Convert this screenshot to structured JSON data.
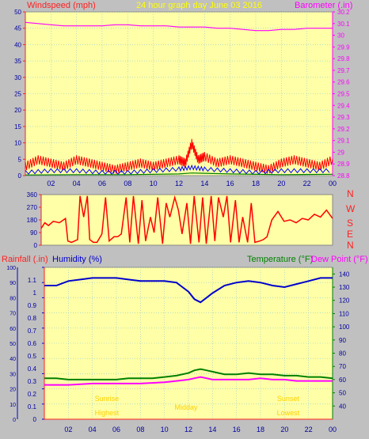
{
  "header": {
    "left_label": "Windspeed (mph)",
    "title": "24 hour graph day   June 03 2016",
    "right_label": "Barometer (.in)"
  },
  "compass": [
    "N",
    "W",
    "S",
    "E",
    "N"
  ],
  "bottom_labels": {
    "rainfall": "Rainfall (.in)",
    "humidity": "Humidity (%)",
    "temperature": "Temperature (°F)",
    "dewpoint": "Dew Point (°F)"
  },
  "colors": {
    "background": "#c0c0c0",
    "plot_bg": "#ffffa8",
    "grid": "#8ec9c9",
    "axis_red": "#ff2020",
    "barometer": "#ff00ff",
    "wind_speed": "#ff0000",
    "wind_avg": "#0000ff",
    "wind_low": "#008000",
    "wind_dir": "#ff0000",
    "humidity": "#0000cc",
    "temperature": "#008000",
    "dewpoint": "#ff00ff",
    "header_text": "#ffff00"
  },
  "chart_data": [
    {
      "type": "line",
      "name": "windspeed-barometer",
      "title": "24 hour graph day   June 03 2016",
      "ylabel_left": "Windspeed (mph)",
      "ylabel_right": "Barometer (.in)",
      "x_ticks": [
        "02",
        "04",
        "06",
        "08",
        "10",
        "12",
        "14",
        "16",
        "18",
        "20",
        "22",
        "00"
      ],
      "xlim": [
        0,
        24
      ],
      "ylim_left": [
        0,
        50
      ],
      "ylim_right": [
        28.8,
        30.2
      ],
      "y_ticks_left": [
        0,
        5,
        10,
        15,
        20,
        25,
        30,
        35,
        40,
        45,
        50
      ],
      "y_ticks_right": [
        "28.8",
        "28.9",
        "29",
        "29.1",
        "29.2",
        "29.3",
        "29.4",
        "29.5",
        "29.6",
        "29.7",
        "29.8",
        "29.9",
        "30",
        "30.1",
        "30.2"
      ],
      "grid": true,
      "barometer": {
        "x": [
          0,
          1,
          2,
          3,
          4,
          5,
          6,
          7,
          8,
          9,
          10,
          11,
          12,
          13,
          14,
          15,
          16,
          17,
          18,
          19,
          20,
          21,
          22,
          23,
          24
        ],
        "y": [
          30.11,
          30.1,
          30.09,
          30.08,
          30.08,
          30.08,
          30.08,
          30.09,
          30.09,
          30.08,
          30.08,
          30.08,
          30.07,
          30.07,
          30.07,
          30.06,
          30.06,
          30.05,
          30.04,
          30.04,
          30.05,
          30.05,
          30.06,
          30.06,
          30.06
        ]
      },
      "wind_gust": {
        "x": [
          0,
          1,
          2,
          3,
          4,
          5,
          6,
          7,
          8,
          9,
          10,
          11,
          12,
          12.5,
          13,
          13.5,
          14,
          15,
          16,
          17,
          18,
          19,
          20,
          21,
          22,
          23,
          24
        ],
        "y": [
          3,
          5,
          4,
          3,
          5,
          4,
          3,
          2,
          3,
          4,
          3,
          4,
          5,
          4,
          10,
          5,
          6,
          4,
          5,
          4,
          3,
          2,
          4,
          5,
          4,
          3,
          5
        ]
      },
      "wind_avg": {
        "x": [
          0,
          2,
          4,
          6,
          8,
          10,
          12,
          13,
          14,
          16,
          18,
          20,
          22,
          24
        ],
        "y": [
          1,
          1.5,
          1.5,
          1,
          1,
          1.5,
          2,
          2.5,
          2,
          1.5,
          1,
          1.5,
          1.5,
          1.5
        ]
      },
      "wind_low": {
        "x": [
          0,
          4,
          8,
          12,
          13,
          16,
          20,
          24
        ],
        "y": [
          0.2,
          0.3,
          0.3,
          0.5,
          0.8,
          0.5,
          0.3,
          0.4
        ]
      }
    },
    {
      "type": "line",
      "name": "wind-direction",
      "x_ticks": [
        "02",
        "04",
        "06",
        "08",
        "10",
        "12",
        "14",
        "16",
        "18",
        "20",
        "22",
        "00"
      ],
      "xlim": [
        0,
        24
      ],
      "ylim": [
        0,
        360
      ],
      "y_ticks": [
        0,
        90,
        180,
        270,
        360
      ],
      "direction": {
        "x": [
          0,
          0.3,
          0.6,
          1,
          1.5,
          2,
          2.2,
          2.5,
          3,
          3.2,
          3.5,
          3.8,
          4,
          4.3,
          4.6,
          5,
          5.3,
          5.6,
          6,
          6.3,
          6.6,
          7,
          7.3,
          7.6,
          8,
          8.3,
          8.6,
          9,
          9.3,
          9.6,
          10,
          10.3,
          10.6,
          11,
          11.3,
          11.6,
          12,
          12.3,
          12.6,
          13,
          13.3,
          13.6,
          14,
          14.3,
          14.6,
          15,
          15.3,
          15.6,
          16,
          16.3,
          16.6,
          17,
          17.3,
          17.6,
          18,
          18.3,
          18.6,
          19,
          19.5,
          20,
          20.5,
          21,
          21.5,
          22,
          22.5,
          23,
          23.5,
          24
        ],
        "y": [
          120,
          160,
          140,
          170,
          160,
          190,
          30,
          20,
          40,
          350,
          200,
          350,
          40,
          20,
          20,
          80,
          340,
          30,
          60,
          60,
          80,
          340,
          20,
          350,
          10,
          320,
          30,
          200,
          90,
          340,
          10,
          300,
          200,
          340,
          250,
          80,
          300,
          10,
          350,
          20,
          340,
          10,
          350,
          30,
          340,
          200,
          350,
          20,
          320,
          20,
          200,
          20,
          300,
          20,
          30,
          40,
          60,
          180,
          240,
          170,
          180,
          160,
          190,
          180,
          220,
          200,
          250,
          190
        ]
      }
    },
    {
      "type": "line",
      "name": "rain-humidity-temperature",
      "ylabel_left_outer": "Rainfall (.in)",
      "ylabel_left_inner": "Humidity (%)",
      "ylabel_right": "Temperature (°F)",
      "ylabel_right2": "Dew Point (°F)",
      "x_ticks": [
        "02",
        "04",
        "06",
        "08",
        "10",
        "12",
        "14",
        "16",
        "18",
        "20",
        "22",
        "00"
      ],
      "xlim": [
        0,
        24
      ],
      "ylim_rain": [
        0,
        1.2
      ],
      "y_ticks_rain": [
        "0",
        "0.1",
        "0.2",
        "0.3",
        "0.4",
        "0.5",
        "0.6",
        "0.7",
        "0.8",
        "0.9",
        "1",
        "1.1"
      ],
      "ylim_humidity": [
        0,
        100
      ],
      "y_ticks_humidity": [
        0,
        10,
        20,
        30,
        40,
        50,
        60,
        70,
        80,
        90,
        100
      ],
      "ylim_temp": [
        30,
        145
      ],
      "y_ticks_temp": [
        40,
        50,
        60,
        70,
        80,
        90,
        100,
        110,
        120,
        130,
        140
      ],
      "grid": true,
      "humidity": {
        "x": [
          0,
          1,
          2,
          3,
          4,
          5,
          6,
          7,
          8,
          9,
          10,
          11,
          11.5,
          12,
          12.5,
          13,
          13.5,
          14,
          15,
          16,
          17,
          18,
          19,
          20,
          21,
          22,
          23,
          24
        ],
        "y": [
          88,
          88,
          91,
          92,
          93,
          93,
          93,
          92,
          91,
          91,
          91,
          90,
          87,
          84,
          79,
          77,
          80,
          83,
          88,
          90,
          91,
          90,
          88,
          87,
          89,
          91,
          93,
          93
        ]
      },
      "temperature": {
        "x": [
          0,
          1,
          2,
          3,
          4,
          5,
          6,
          7,
          8,
          9,
          10,
          11,
          12,
          12.5,
          13,
          13.5,
          14,
          15,
          16,
          17,
          18,
          19,
          20,
          21,
          22,
          23,
          24
        ],
        "y": [
          61,
          61,
          60,
          60,
          60,
          60,
          60,
          61,
          61,
          61,
          62,
          63,
          65,
          67,
          68,
          67,
          66,
          64,
          64,
          65,
          64,
          64,
          63,
          63,
          62,
          62,
          61
        ]
      },
      "dewpoint": {
        "x": [
          0,
          2,
          4,
          6,
          8,
          10,
          11,
          12,
          12.5,
          13,
          13.5,
          14,
          15,
          16,
          17,
          18,
          19,
          20,
          21,
          22,
          23,
          24
        ],
        "y": [
          56,
          56,
          57,
          57,
          57,
          58,
          59,
          60,
          61,
          62,
          61,
          60,
          60,
          60,
          60,
          61,
          60,
          60,
          59,
          59,
          59,
          59
        ]
      },
      "rainfall": {
        "x": [
          0,
          24
        ],
        "y": [
          0,
          0
        ]
      },
      "annotations": [
        {
          "text": "Sunrise",
          "hour": 5.2
        },
        {
          "text": "Highest",
          "hour": 5.2
        },
        {
          "text": "Midday",
          "hour": 11.8
        },
        {
          "text": "Sunset",
          "hour": 20.3
        },
        {
          "text": "Lowest",
          "hour": 20.3
        }
      ]
    }
  ]
}
